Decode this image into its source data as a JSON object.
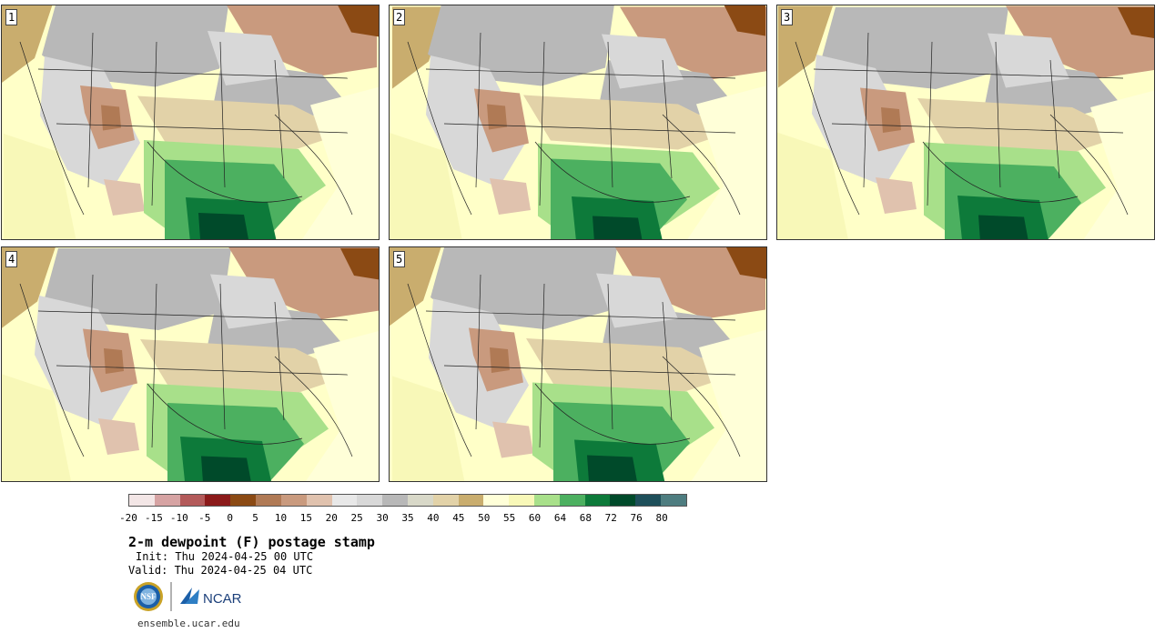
{
  "panels": [
    {
      "label": "1"
    },
    {
      "label": "2"
    },
    {
      "label": "3"
    },
    {
      "label": "4"
    },
    {
      "label": "5"
    }
  ],
  "colorbar": {
    "colors": [
      "#f3e6e6",
      "#d6a3a3",
      "#b35a5a",
      "#8b1a1a",
      "#8b4a14",
      "#b07a55",
      "#c99a7e",
      "#e0c2ae",
      "#e8e8e8",
      "#d8d8d8",
      "#b8b8b8",
      "#d8d8c8",
      "#e2d2a8",
      "#c9ad6e",
      "#ffffd8",
      "#f8f8b8",
      "#a8e08a",
      "#4cb060",
      "#0d7a3a",
      "#004a2a",
      "#1e4f5a",
      "#4e7d80"
    ],
    "ticks": [
      "-20",
      "-15",
      "-10",
      "-5",
      "0",
      "5",
      "10",
      "15",
      "20",
      "25",
      "30",
      "35",
      "40",
      "45",
      "50",
      "55",
      "60",
      "64",
      "68",
      "72",
      "76",
      "80"
    ]
  },
  "title": "2-m dewpoint (F) postage stamp",
  "init": "Init: Thu 2024-04-25 00 UTC",
  "valid": "Valid: Thu 2024-04-25 04 UTC",
  "logos": {
    "nsf": "NSF",
    "ncar": "NCAR"
  },
  "site": "ensemble.ucar.edu"
}
